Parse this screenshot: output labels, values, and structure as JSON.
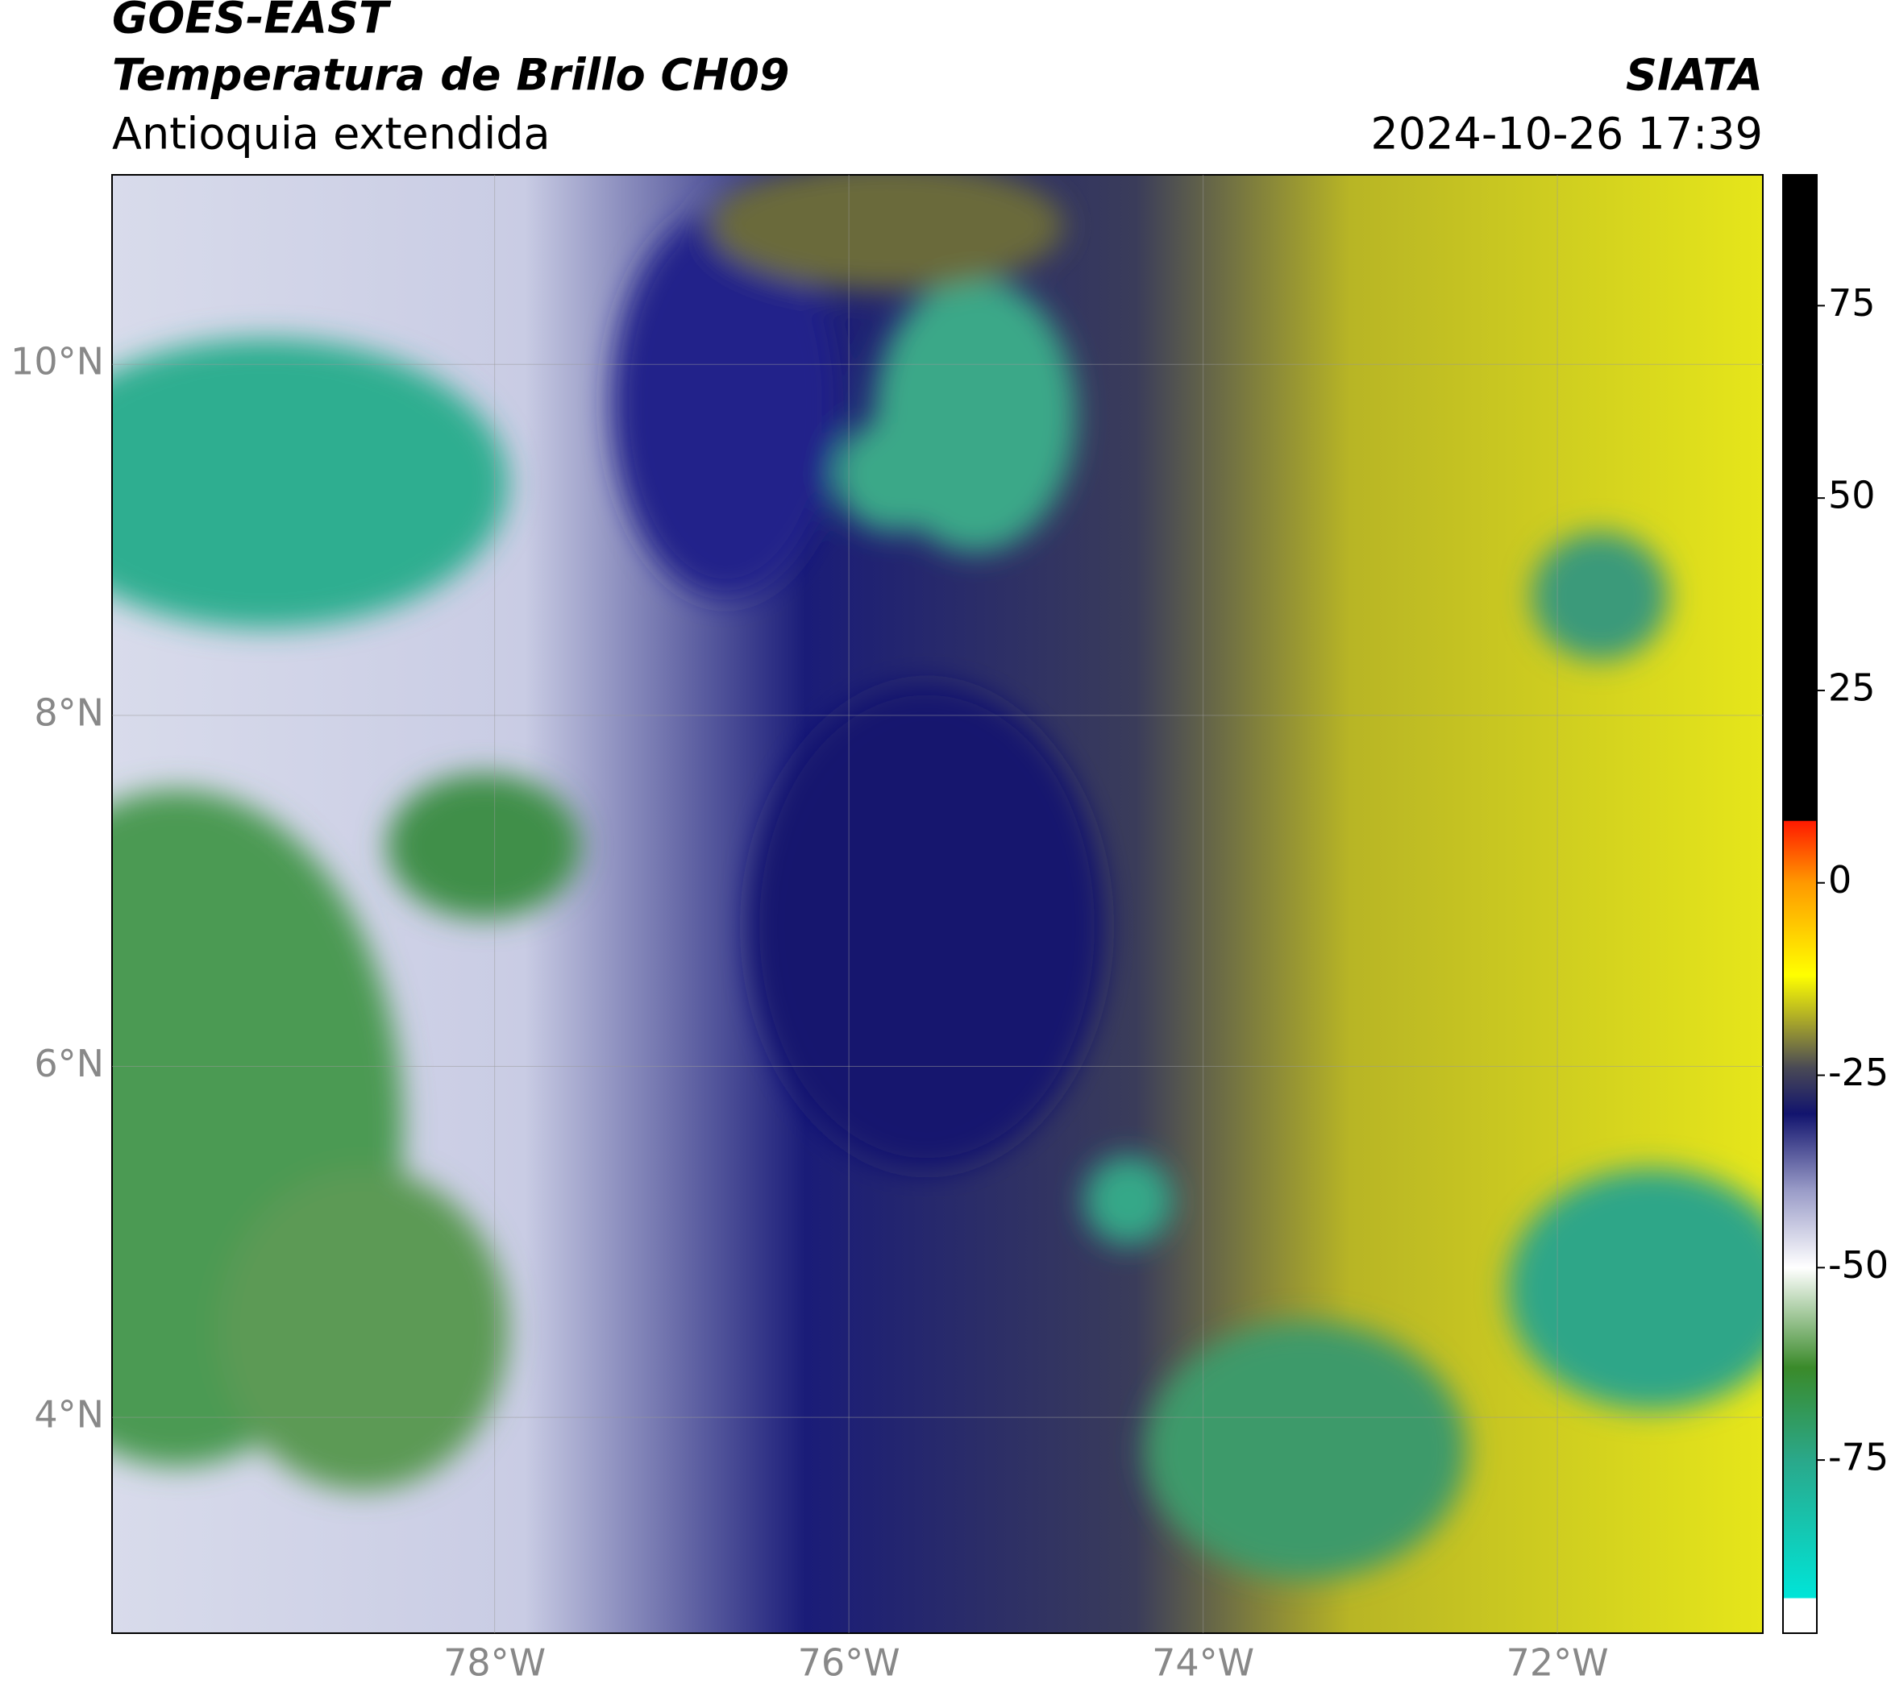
{
  "header": {
    "source": "GOES-EAST",
    "title": "Temperatura de Brillo CH09",
    "region": "Antioquia extendida",
    "agency": "SIATA",
    "timestamp": "2024-10-26 17:39"
  },
  "map": {
    "xlim": [
      -80.16,
      -70.84
    ],
    "ylim": [
      2.77,
      11.08
    ],
    "xticks": [
      {
        "value": -78,
        "label": "78°W"
      },
      {
        "value": -76,
        "label": "76°W"
      },
      {
        "value": -74,
        "label": "74°W"
      },
      {
        "value": -72,
        "label": "72°W"
      }
    ],
    "yticks": [
      {
        "value": 10,
        "label": "10°N"
      },
      {
        "value": 8,
        "label": "8°N"
      },
      {
        "value": 6,
        "label": "6°N"
      },
      {
        "value": 4,
        "label": "4°N"
      }
    ],
    "grid": true,
    "colorbar": {
      "lim": [
        -97.5,
        92
      ],
      "ticks": [
        75,
        50,
        25,
        0,
        -25,
        -50,
        -75
      ],
      "stops": [
        {
          "value": -97.5,
          "color": "#ffffff"
        },
        {
          "value": -93,
          "color": "#ffffff"
        },
        {
          "value": -92.9,
          "color": "#00e5d8"
        },
        {
          "value": -75,
          "color": "#2aa88a"
        },
        {
          "value": -63,
          "color": "#3a8a2a"
        },
        {
          "value": -50,
          "color": "#ffffff"
        },
        {
          "value": -40,
          "color": "#9a9cc8"
        },
        {
          "value": -30,
          "color": "#12146e"
        },
        {
          "value": -24,
          "color": "#4a4a55"
        },
        {
          "value": -18,
          "color": "#a8a62a"
        },
        {
          "value": -12,
          "color": "#ffff00"
        },
        {
          "value": 0,
          "color": "#ff9900"
        },
        {
          "value": 8,
          "color": "#ff1a00"
        },
        {
          "value": 8.1,
          "color": "#000000"
        },
        {
          "value": 92,
          "color": "#000000"
        }
      ]
    }
  }
}
